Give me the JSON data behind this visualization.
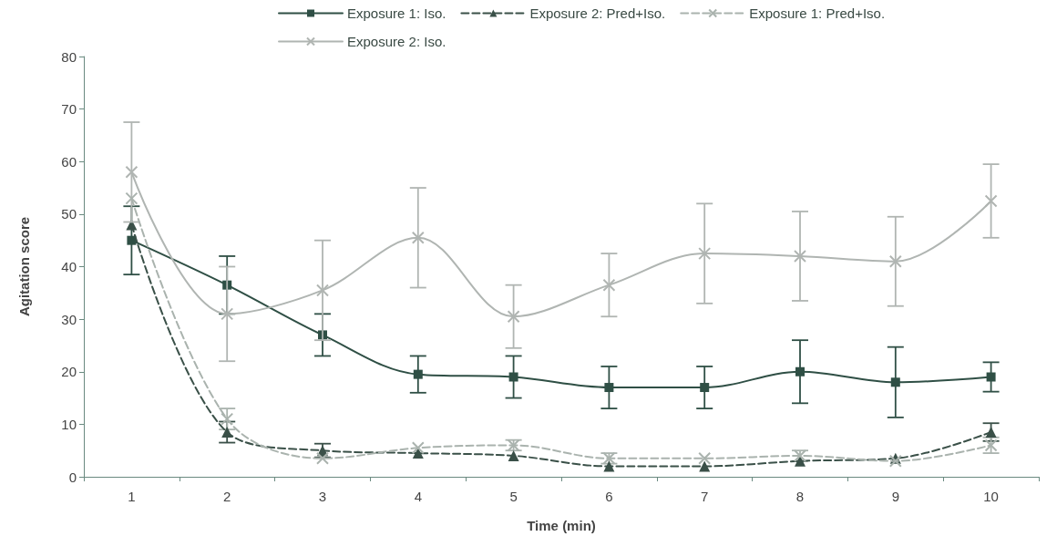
{
  "chart_data": {
    "type": "line",
    "xlabel": "Time (min)",
    "ylabel": "Agitation score",
    "categories": [
      "1",
      "2",
      "3",
      "4",
      "5",
      "6",
      "7",
      "8",
      "9",
      "10"
    ],
    "ylim": [
      0,
      80
    ],
    "yticks": [
      0,
      10,
      20,
      30,
      40,
      50,
      60,
      70,
      80
    ],
    "grid": false,
    "legend": "top",
    "series": [
      {
        "name": "Exposure 1: Iso.",
        "color": "#2f4f45",
        "marker": "square",
        "line_style": "solid",
        "values": [
          45,
          36.5,
          27,
          19.5,
          19,
          17,
          17,
          20,
          18,
          19
        ],
        "errors": [
          6.5,
          5.5,
          4,
          3.5,
          4,
          4,
          4,
          6,
          6.7,
          2.8
        ]
      },
      {
        "name": "Exposure 2: Pred+Iso.",
        "color": "#3a5048",
        "marker": "triangle",
        "line_style": "dashed",
        "values": [
          48,
          8.5,
          5,
          4.5,
          4,
          2,
          2,
          3,
          3.5,
          8.5
        ],
        "errors": [
          null,
          2,
          1.3,
          null,
          null,
          null,
          null,
          null,
          null,
          1.7
        ]
      },
      {
        "name": "Exposure 1: Pred+Iso.",
        "color": "#aab3ae",
        "marker": "cross",
        "line_style": "dashed",
        "values": [
          53,
          11,
          3.5,
          5.5,
          6,
          3.5,
          3.5,
          4,
          3,
          6
        ],
        "errors": [
          null,
          2,
          null,
          null,
          1,
          1,
          null,
          1,
          null,
          1.5
        ]
      },
      {
        "name": "Exposure 2: Iso.",
        "color": "#b0b5b2",
        "marker": "cross",
        "line_style": "solid",
        "values": [
          58,
          31,
          35.5,
          45.5,
          30.5,
          36.5,
          42.5,
          42,
          41,
          52.5
        ],
        "errors": [
          9.5,
          9,
          9.5,
          9.5,
          6,
          6,
          9.5,
          8.5,
          8.5,
          7
        ]
      }
    ]
  }
}
